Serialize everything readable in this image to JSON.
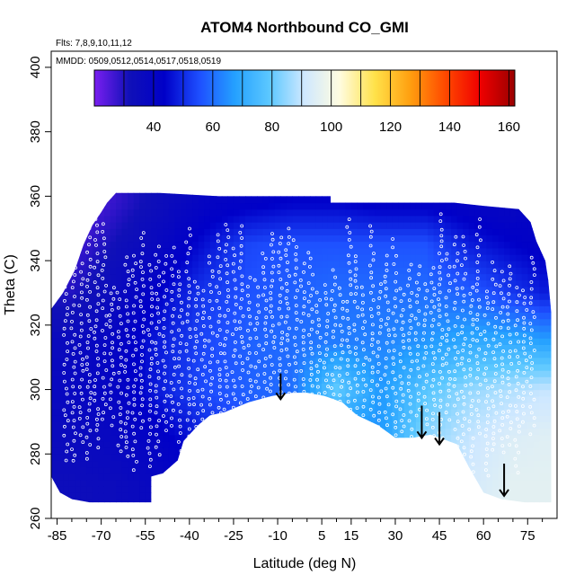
{
  "chart_data": {
    "type": "heatmap",
    "title": "ATOM4 Northbound CO_GMI",
    "annotations": [
      "Flts: 7,8,9,10,11,12",
      "MMDD: 0509,0512,0514,0517,0518,0519"
    ],
    "xlabel": "Latitude (deg N)",
    "ylabel": "Theta (C)",
    "xlim": [
      -87,
      85
    ],
    "ylim": [
      260,
      405
    ],
    "x_ticks": [
      -85,
      -70,
      -55,
      -40,
      -25,
      -10,
      5,
      15,
      30,
      45,
      60,
      75
    ],
    "y_ticks": [
      260,
      280,
      300,
      320,
      340,
      360,
      380,
      400
    ],
    "colorbar": {
      "range": [
        20,
        162
      ],
      "ticks": [
        40,
        60,
        80,
        100,
        120,
        140,
        160
      ],
      "colors": [
        "#7a1ff0",
        "#1010b8",
        "#0000c8",
        "#1e4fff",
        "#24a0ff",
        "#5cc8ff",
        "#cfe8ff",
        "#fffce0",
        "#ffe24a",
        "#ffa010",
        "#ff4a00",
        "#f00000",
        "#9a0000"
      ]
    },
    "field": {
      "sample_grid_lat": [
        -80,
        -65,
        -50,
        -35,
        -20,
        -5,
        10,
        25,
        40,
        55,
        70,
        80
      ],
      "sample_grid_theta": [
        270,
        285,
        300,
        315,
        330,
        345,
        358
      ],
      "co_ppb_estimate": [
        [
          34,
          35,
          38,
          42,
          50,
          52,
          56,
          62,
          86,
          92,
          96,
          96
        ],
        [
          36,
          38,
          42,
          48,
          55,
          58,
          62,
          66,
          84,
          90,
          94,
          95
        ],
        [
          38,
          40,
          48,
          55,
          58,
          60,
          80,
          66,
          78,
          85,
          88,
          90
        ],
        [
          36,
          40,
          48,
          54,
          58,
          60,
          62,
          63,
          66,
          70,
          70,
          68
        ],
        [
          30,
          36,
          44,
          52,
          56,
          58,
          60,
          60,
          60,
          58,
          52,
          48
        ],
        [
          26,
          32,
          38,
          46,
          54,
          56,
          56,
          56,
          56,
          48,
          44,
          42
        ],
        [
          22,
          28,
          34,
          40,
          42,
          44,
          44,
          42,
          42,
          40,
          38,
          40
        ]
      ]
    },
    "arrows_at_lat": [
      -9,
      39,
      45,
      67
    ],
    "grid": false
  }
}
